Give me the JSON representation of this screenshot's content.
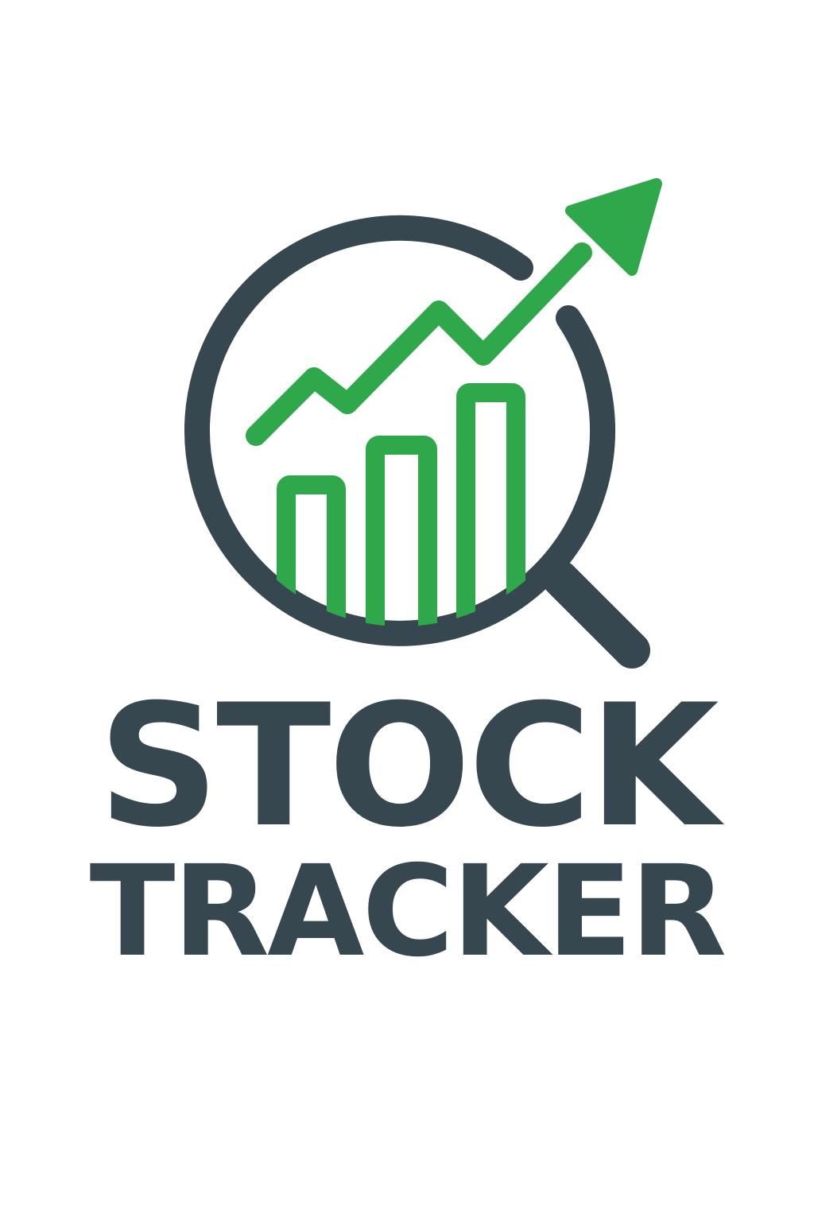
{
  "logo": {
    "wordmark_line1": "STOCK",
    "wordmark_line2": "TRACKER",
    "icon": "magnifier-chart-icon",
    "colors": {
      "dark": "#37474f",
      "green": "#2ea84a",
      "background": "#ffffff"
    }
  }
}
